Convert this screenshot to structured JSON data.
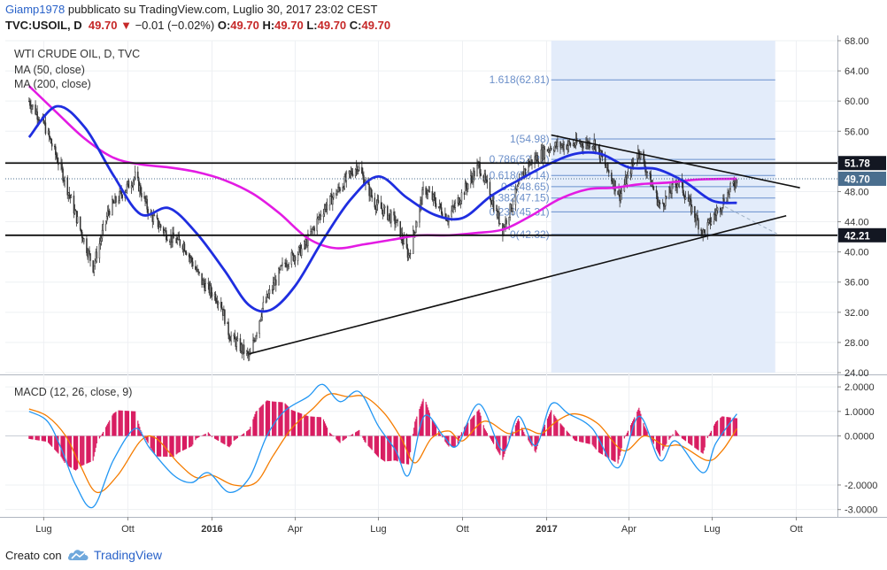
{
  "header": {
    "user": "Giamp1978",
    "published": "pubblicato su TradingView.com, Luglio 30, 2017 23:02 CEST",
    "symbol": "TVC:USOIL, D",
    "last": "49.70",
    "arrow": "▼",
    "change": "−0.01 (−0.02%)",
    "o_label": "O:",
    "o_value": "49.70",
    "h_label": "H:",
    "h_value": "49.70",
    "l_label": "L:",
    "l_value": "49.70",
    "c_label": "C:",
    "c_value": "49.70"
  },
  "footer": {
    "created_with": "Creato con",
    "brand": "TradingView",
    "logo_icon": "tradingview-cloud-icon"
  },
  "colors": {
    "ma50": "#1f2ee0",
    "ma200": "#e31be3",
    "up": "#333333",
    "down": "#333333",
    "macd": "#2196f3",
    "signal": "#f57c00",
    "hist": "#d81b60",
    "fib_zone": "#e3ecfa",
    "fib_line": "#4a78c2",
    "level_tag": "#131722",
    "price_tag": "#4a6e8e"
  },
  "chart_data": {
    "type": "line",
    "title": "WTI CRUDE OIL, D, TVC",
    "price_panel": {
      "ylim": [
        24,
        68
      ],
      "y_ticks": [
        "68.00",
        "64.00",
        "60.00",
        "56.00",
        "52.00",
        "48.00",
        "44.00",
        "40.00",
        "36.00",
        "32.00",
        "28.00",
        "24.00"
      ],
      "x_ticks": [
        "Lug",
        "Ott",
        "2016",
        "Apr",
        "Lug",
        "Ott",
        "2017",
        "Apr",
        "Lug",
        "Ott"
      ],
      "series": [
        {
          "name": "MA (50, close)",
          "x": [
            "2015-06-15",
            "2015-07-15",
            "2015-08-15",
            "2015-09-15",
            "2015-10-15",
            "2015-11-15",
            "2015-12-15",
            "2016-01-15",
            "2016-02-10",
            "2016-03-05",
            "2016-04-01",
            "2016-05-01",
            "2016-06-01",
            "2016-07-01",
            "2016-08-01",
            "2016-09-01",
            "2016-10-01",
            "2016-11-01",
            "2016-12-01",
            "2017-01-01",
            "2017-02-01",
            "2017-03-01",
            "2017-04-01",
            "2017-05-01",
            "2017-06-01",
            "2017-07-01",
            "2017-07-28"
          ],
          "values": [
            55.2,
            59.3,
            56.5,
            50.2,
            45.0,
            45.8,
            42.5,
            37.5,
            33.0,
            32.3,
            35.5,
            41.5,
            47.0,
            50.0,
            47.2,
            44.9,
            44.5,
            47.4,
            49.5,
            51.5,
            53.0,
            53.0,
            51.2,
            51.0,
            49.3,
            46.8,
            46.5
          ]
        },
        {
          "name": "MA (200, close)",
          "x": [
            "2015-06-15",
            "2015-07-15",
            "2015-08-15",
            "2015-09-15",
            "2015-10-15",
            "2015-11-15",
            "2015-12-15",
            "2016-01-15",
            "2016-02-15",
            "2016-03-15",
            "2016-04-15",
            "2016-05-15",
            "2016-06-15",
            "2016-07-15",
            "2016-08-15",
            "2016-09-15",
            "2016-10-15",
            "2016-11-15",
            "2016-12-15",
            "2017-01-15",
            "2017-02-15",
            "2017-03-15",
            "2017-04-15",
            "2017-05-15",
            "2017-06-15",
            "2017-07-28"
          ],
          "values": [
            62.0,
            58.5,
            55.0,
            52.5,
            51.6,
            51.2,
            50.6,
            49.5,
            47.7,
            45.1,
            41.8,
            40.5,
            41.0,
            41.6,
            42.2,
            42.2,
            42.5,
            43.0,
            44.8,
            47.0,
            48.3,
            48.5,
            49.0,
            49.2,
            49.6,
            49.7
          ]
        },
        {
          "name": "WTI CRUDE OIL",
          "x": [
            "2015-06-15",
            "2015-07-01",
            "2015-07-20",
            "2015-08-10",
            "2015-08-24",
            "2015-09-10",
            "2015-10-09",
            "2015-10-25",
            "2015-11-15",
            "2015-12-01",
            "2015-12-21",
            "2016-01-10",
            "2016-01-20",
            "2016-02-11",
            "2016-02-25",
            "2016-03-20",
            "2016-04-10",
            "2016-05-01",
            "2016-06-08",
            "2016-06-27",
            "2016-07-20",
            "2016-08-03",
            "2016-08-20",
            "2016-09-15",
            "2016-10-19",
            "2016-11-14",
            "2016-12-10",
            "2017-01-06",
            "2017-02-22",
            "2017-03-22",
            "2017-04-12",
            "2017-05-05",
            "2017-05-25",
            "2017-06-21",
            "2017-07-07",
            "2017-07-28"
          ],
          "values": [
            60.0,
            57.0,
            51.0,
            43.0,
            38.0,
            45.5,
            50.0,
            45.0,
            42.0,
            41.0,
            36.0,
            33.5,
            29.0,
            26.0,
            32.5,
            38.5,
            40.5,
            45.5,
            51.5,
            46.5,
            44.0,
            39.5,
            48.5,
            44.5,
            51.5,
            43.0,
            51.5,
            54.0,
            54.5,
            47.5,
            53.5,
            46.0,
            49.5,
            42.5,
            45.5,
            49.7
          ]
        }
      ],
      "levels": [
        {
          "label": "51.78",
          "value": 51.78
        },
        {
          "label": "42.21",
          "value": 42.21
        }
      ],
      "current_price": {
        "label": "49.70",
        "value": 49.7
      },
      "fibonacci": [
        {
          "label": "1.618(62.81)",
          "value": 62.81
        },
        {
          "label": "1(54.98)",
          "value": 54.98
        },
        {
          "label": "0.786(52.27)",
          "value": 52.27
        },
        {
          "label": "0.618(50.14)",
          "value": 50.14
        },
        {
          "label": "0.5(48.65)",
          "value": 48.65
        },
        {
          "label": "0.382(47.15)",
          "value": 47.15
        },
        {
          "label": "0.236(45.31)",
          "value": 45.31
        },
        {
          "label": "0(42.32)",
          "value": 42.32
        }
      ],
      "fib_range": {
        "start": "2017-01-06",
        "end": "2017-09-08"
      },
      "trendlines": [
        {
          "name": "support",
          "points": [
            [
              "2016-02-11",
              26.5
            ],
            [
              "2017-09-20",
              44.8
            ]
          ]
        },
        {
          "name": "resistance",
          "points": [
            [
              "2017-01-06",
              55.5
            ],
            [
              "2017-10-05",
              48.5
            ]
          ]
        },
        {
          "name": "projection",
          "style": "dashed",
          "points": [
            [
              "2017-07-15",
              46.0
            ],
            [
              "2017-09-10",
              42.4
            ]
          ]
        }
      ],
      "horizontal_lines": [
        51.78,
        42.21
      ]
    },
    "macd_panel": {
      "name": "MACD (12, 26, close, 9)",
      "ylim": [
        -3.3,
        2.4
      ],
      "y_ticks": [
        "2.0000",
        "1.0000",
        "0.0000",
        "-2.0000",
        "-3.0000"
      ],
      "series": [
        {
          "name": "MACD",
          "x": [
            "2015-06-15",
            "2015-07-05",
            "2015-07-20",
            "2015-08-05",
            "2015-08-24",
            "2015-09-15",
            "2015-10-09",
            "2015-10-25",
            "2015-11-20",
            "2015-12-10",
            "2015-12-28",
            "2016-01-20",
            "2016-02-11",
            "2016-03-01",
            "2016-03-20",
            "2016-04-15",
            "2016-05-01",
            "2016-05-20",
            "2016-06-10",
            "2016-07-01",
            "2016-07-20",
            "2016-08-03",
            "2016-08-20",
            "2016-09-10",
            "2016-09-25",
            "2016-10-19",
            "2016-11-14",
            "2016-12-01",
            "2016-12-20",
            "2017-01-06",
            "2017-01-25",
            "2017-02-20",
            "2017-03-20",
            "2017-04-12",
            "2017-05-05",
            "2017-05-22",
            "2017-06-21",
            "2017-07-05",
            "2017-07-28"
          ],
          "values": [
            1.0,
            0.6,
            -0.5,
            -2.0,
            -2.9,
            -1.0,
            0.3,
            -0.5,
            -1.6,
            -1.9,
            -1.5,
            -2.3,
            -1.7,
            0.0,
            1.0,
            1.6,
            2.1,
            1.4,
            1.8,
            0.4,
            -0.6,
            -1.6,
            0.8,
            0.0,
            -0.4,
            1.3,
            -0.6,
            0.8,
            -0.4,
            1.3,
            0.9,
            0.3,
            -1.3,
            0.8,
            -1.0,
            -0.2,
            -1.5,
            -0.3,
            0.9
          ]
        },
        {
          "name": "Signal",
          "x": [
            "2015-06-15",
            "2015-07-05",
            "2015-07-25",
            "2015-08-10",
            "2015-08-28",
            "2015-09-20",
            "2015-10-15",
            "2015-11-01",
            "2015-11-25",
            "2015-12-15",
            "2016-01-01",
            "2016-01-25",
            "2016-02-18",
            "2016-03-08",
            "2016-03-28",
            "2016-04-20",
            "2016-05-08",
            "2016-05-28",
            "2016-06-16",
            "2016-07-08",
            "2016-07-26",
            "2016-08-10",
            "2016-08-28",
            "2016-09-16",
            "2016-10-01",
            "2016-10-25",
            "2016-11-20",
            "2016-12-08",
            "2016-12-26",
            "2017-01-12",
            "2017-02-01",
            "2017-02-26",
            "2017-03-26",
            "2017-04-18",
            "2017-05-10",
            "2017-05-28",
            "2017-06-26",
            "2017-07-12",
            "2017-07-28"
          ],
          "values": [
            1.1,
            0.8,
            0.0,
            -1.2,
            -2.3,
            -1.6,
            -0.2,
            -0.1,
            -1.1,
            -1.7,
            -1.6,
            -2.0,
            -1.9,
            -0.8,
            0.3,
            1.1,
            1.7,
            1.6,
            1.6,
            0.9,
            -0.1,
            -1.1,
            -0.1,
            0.2,
            -0.2,
            0.6,
            0.1,
            0.3,
            0.1,
            0.6,
            0.9,
            0.5,
            -0.6,
            0.0,
            -0.4,
            -0.4,
            -1.0,
            -0.6,
            0.3
          ]
        }
      ]
    }
  }
}
